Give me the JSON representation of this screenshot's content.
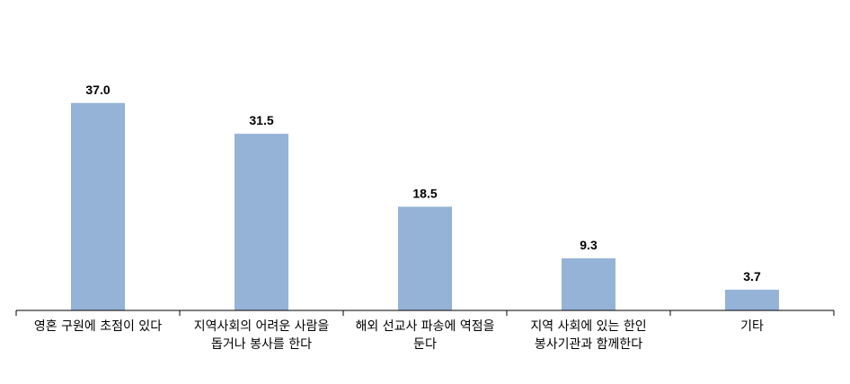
{
  "chart_data": {
    "type": "bar",
    "categories": [
      "영혼 구원에 초점이 있다",
      "지역사회의 어려운 사람을 돕거나 봉사를 한다",
      "해외 선교사 파송에 역점을 둔다",
      "지역 사회에 있는 한인 봉사기관과 함께한다",
      "기타"
    ],
    "values": [
      37.0,
      31.5,
      18.5,
      9.3,
      3.7
    ],
    "value_labels": [
      "37.0",
      "31.5",
      "18.5",
      "9.3",
      "3.7"
    ],
    "color": "#95b3d7",
    "ylim": [
      0,
      40
    ]
  }
}
